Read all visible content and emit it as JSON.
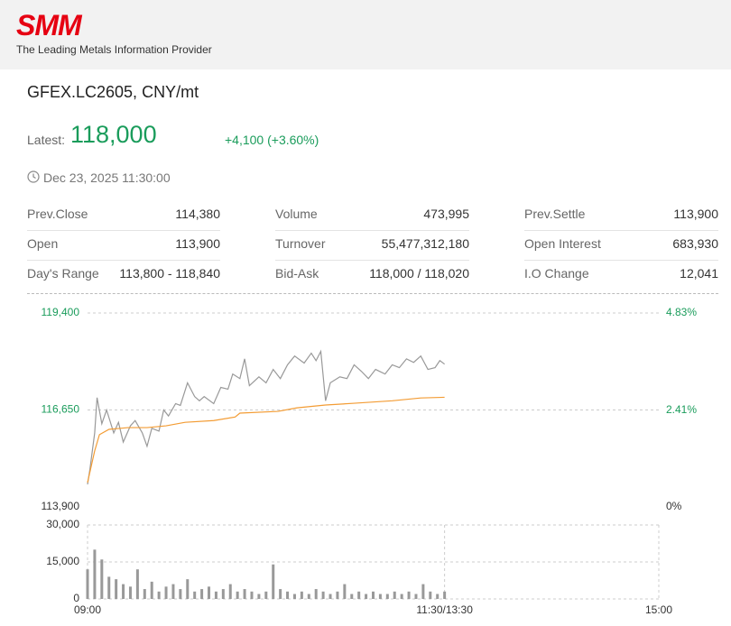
{
  "header": {
    "logo": "SMM",
    "tagline": "The Leading Metals Information Provider"
  },
  "quote": {
    "symbol": "GFEX.LC2605, CNY/mt",
    "latest_label": "Latest:",
    "latest": "118,000",
    "change": "+4,100 (+3.60%)",
    "time": "Dec 23, 2025 11:30:00"
  },
  "stats": [
    {
      "label": "Prev.Close",
      "value": "114,380"
    },
    {
      "label": "Volume",
      "value": "473,995"
    },
    {
      "label": "Prev.Settle",
      "value": "113,900"
    },
    {
      "label": "Open",
      "value": "113,900"
    },
    {
      "label": "Turnover",
      "value": "55,477,312,180"
    },
    {
      "label": "Open Interest",
      "value": "683,930"
    },
    {
      "label": "Day's Range",
      "value": "113,800 - 118,840"
    },
    {
      "label": "Bid-Ask",
      "value": "118,000 / 118,020"
    },
    {
      "label": "I.O Change",
      "value": "12,041"
    }
  ],
  "chart_data": [
    {
      "type": "line",
      "xlim": [
        0,
        240
      ],
      "ylim": [
        113900,
        119400
      ],
      "yticks": [
        {
          "value": 113900,
          "label": "113,900"
        },
        {
          "value": 116650,
          "label": "116,650"
        },
        {
          "value": 119400,
          "label": "119,400"
        }
      ],
      "y2lim": [
        0,
        4.83
      ],
      "y2ticks": [
        {
          "value": 0,
          "label": "0%"
        },
        {
          "value": 2.41,
          "label": "2.41%"
        },
        {
          "value": 4.83,
          "label": "4.83%"
        }
      ],
      "grid": true,
      "series": [
        {
          "color": "#999999",
          "x": [
            0,
            1,
            3,
            4,
            6,
            8,
            11,
            13,
            15,
            18,
            20,
            23,
            25,
            27,
            30,
            32,
            34,
            37,
            39,
            42,
            45,
            47,
            49,
            53,
            56,
            59,
            61,
            64,
            66,
            68,
            72,
            75,
            78,
            81,
            84,
            87,
            91,
            94,
            96,
            98,
            100,
            102,
            106,
            109,
            112,
            115,
            118,
            121,
            125,
            128,
            131,
            134,
            137,
            140,
            143,
            146,
            148,
            150
          ],
          "values": [
            114540,
            114970,
            116000,
            117000,
            116260,
            116650,
            116000,
            116300,
            115740,
            116200,
            116350,
            116000,
            115620,
            116130,
            116050,
            116650,
            116480,
            116830,
            116780,
            117420,
            117030,
            116910,
            117030,
            116830,
            117290,
            117240,
            117670,
            117540,
            118100,
            117340,
            117590,
            117420,
            117800,
            117540,
            117930,
            118180,
            117980,
            118260,
            118050,
            118310,
            116910,
            117420,
            117590,
            117540,
            117930,
            117750,
            117540,
            117800,
            117670,
            117930,
            117850,
            118100,
            118000,
            118180,
            117800,
            117850,
            118050,
            117950
          ]
        },
        {
          "color": "#f39c34",
          "x": [
            0,
            3,
            5,
            9,
            17,
            25,
            33,
            41,
            53,
            62,
            64,
            80,
            88,
            100,
            112,
            128,
            140,
            150
          ],
          "values": [
            114590,
            115490,
            115950,
            116100,
            116150,
            116150,
            116200,
            116300,
            116350,
            116450,
            116560,
            116610,
            116710,
            116790,
            116840,
            116910,
            116990,
            117010
          ]
        }
      ]
    },
    {
      "type": "bar",
      "color": "#999999",
      "xlim": [
        0,
        240
      ],
      "ylim": [
        0,
        30000
      ],
      "yticks": [
        0,
        {
          "value": 15000,
          "label": "15,000"
        },
        {
          "value": 30000,
          "label": "30,000"
        }
      ],
      "xticks": [
        {
          "value": 0,
          "label": "09:00"
        },
        {
          "value": 150,
          "label": "11:30/13:30"
        },
        {
          "value": 240,
          "label": "15:00"
        }
      ],
      "grid": true,
      "x": [
        0,
        3,
        6,
        9,
        12,
        15,
        18,
        21,
        24,
        27,
        30,
        33,
        36,
        39,
        42,
        45,
        48,
        51,
        54,
        57,
        60,
        63,
        66,
        69,
        72,
        75,
        78,
        81,
        84,
        87,
        90,
        93,
        96,
        99,
        102,
        105,
        108,
        111,
        114,
        117,
        120,
        123,
        126,
        129,
        132,
        135,
        138,
        141,
        144,
        147,
        150
      ],
      "values": [
        12000,
        20000,
        16000,
        9000,
        8000,
        6000,
        5000,
        12000,
        4000,
        7000,
        3000,
        5000,
        6000,
        4000,
        8000,
        3000,
        4000,
        5000,
        3000,
        4000,
        6000,
        3000,
        4000,
        3000,
        2000,
        3000,
        14000,
        4000,
        3000,
        2000,
        3000,
        2000,
        4000,
        3000,
        2000,
        3000,
        6000,
        2000,
        3000,
        2000,
        3000,
        2000,
        2000,
        3000,
        2000,
        3000,
        2000,
        6000,
        3000,
        2000,
        3000
      ]
    }
  ]
}
